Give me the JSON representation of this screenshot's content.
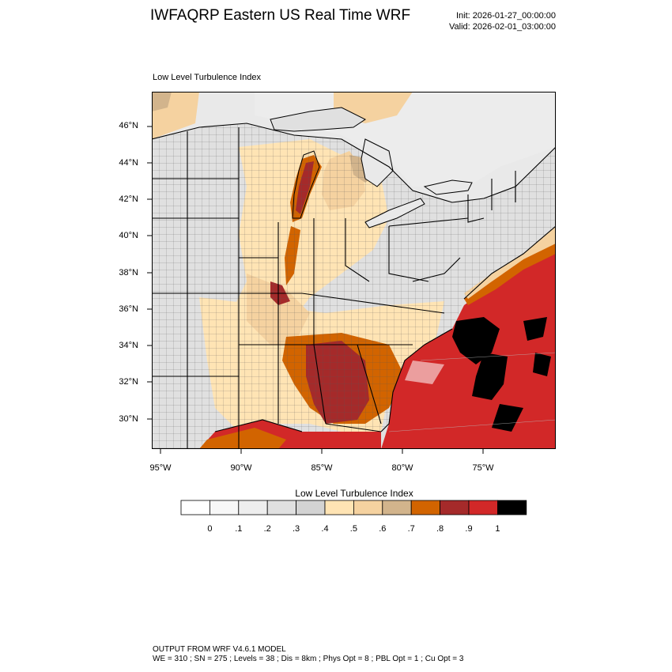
{
  "header": {
    "title": "IWFAQRP Eastern US Real Time WRF",
    "init": "Init: 2026-01-27_00:00:00",
    "valid": "Valid: 2026-02-01_03:00:00"
  },
  "panel": {
    "title": "Low Level Turbulence Index"
  },
  "axes": {
    "lat_labels": [
      "46°N",
      "44°N",
      "42°N",
      "40°N",
      "38°N",
      "36°N",
      "34°N",
      "32°N",
      "30°N"
    ],
    "lon_labels": [
      "95°W",
      "90°W",
      "85°W",
      "80°W",
      "75°W"
    ]
  },
  "colorbar": {
    "title": "Low Level Turbulence Index",
    "labels": [
      "0",
      ".1",
      ".2",
      ".3",
      ".4",
      ".5",
      ".6",
      ".7",
      ".8",
      ".9",
      "1"
    ],
    "colors": [
      "#ffffff",
      "#f7f7f7",
      "#eeeeee",
      "#e0e0e0",
      "#d3d3d3",
      "#ffe4b4",
      "#f5d2a0",
      "#d2b48c",
      "#d26400",
      "#a52a2a",
      "#d22828",
      "#000000"
    ]
  },
  "footer": {
    "line1": "OUTPUT FROM WRF V4.6.1 MODEL",
    "line2": "WE = 310 ; SN = 275 ; Levels = 38 ; Dis = 8km ; Phys Opt = 8 ; PBL Opt = 1 ; Cu Opt = 3"
  }
}
